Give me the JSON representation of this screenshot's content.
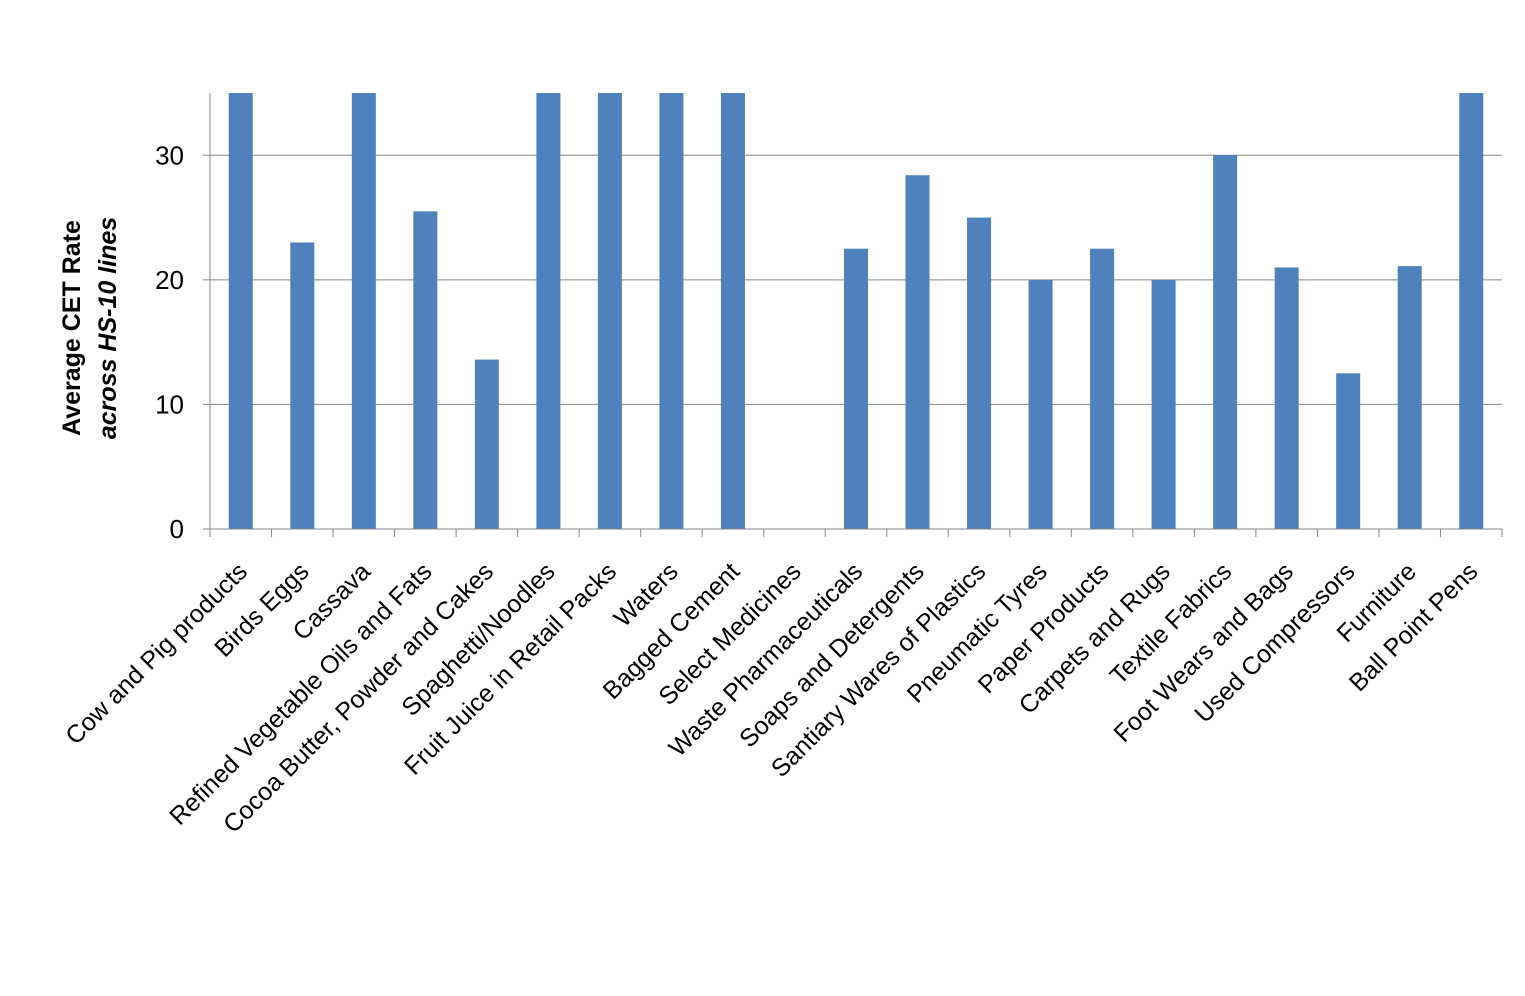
{
  "chart_data": {
    "type": "bar",
    "title": "",
    "xlabel": "",
    "ylabel": "Average CET Rate",
    "ylabel_line2": "across HS-10 lines",
    "categories": [
      "Cow and Pig products",
      "Birds Eggs",
      "Cassava",
      "Refined Vegetable Oils and Fats",
      "Cocoa Butter, Powder and Cakes",
      "Spaghetti/Noodles",
      "Fruit Juice in Retail Packs",
      "Waters",
      "Bagged Cement",
      "Select Medicines",
      "Waste Pharmaceuticals",
      "Soaps and Detergents",
      "Santiary Wares of Plastics",
      "Pneumatic Tyres",
      "Paper Products",
      "Carpets and Rugs",
      "Textile Fabrics",
      "Foot Wears and Bags",
      "Used Compressors",
      "Furniture",
      "Ball Point Pens"
    ],
    "values": [
      35,
      23,
      35,
      25.5,
      13.6,
      35,
      35,
      35,
      35,
      0,
      22.5,
      28.4,
      25,
      20,
      22.5,
      20,
      30,
      21,
      12.5,
      21.1,
      35
    ],
    "ylim": [
      0,
      35
    ],
    "yticks": [
      "0",
      "10",
      "20",
      "30"
    ],
    "ytick_values": [
      0,
      10,
      20,
      30
    ],
    "grid": true,
    "legend": "none",
    "bar_color": "#4F81BD",
    "grid_color": "#868686"
  }
}
